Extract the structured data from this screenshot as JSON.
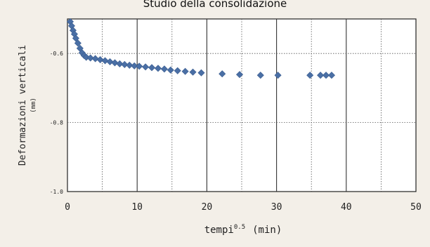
{
  "chart_data": {
    "type": "scatter",
    "title": "Studio della consolidazione",
    "xlabel": "tempi",
    "xlabel_superscript": "0.5",
    "xlabel_unit": "(min)",
    "ylabel": "Deformazioni verticali",
    "ylabel_unit": "(mm)",
    "xlim": [
      0,
      50
    ],
    "ylim": [
      -1.0,
      -0.5
    ],
    "x_ticks": [
      0,
      10,
      20,
      30,
      40,
      50
    ],
    "y_ticks": [
      -0.6,
      -0.8,
      -1.0
    ],
    "y_tick_labels": [
      "-0.6",
      "-0.8",
      "-1.0"
    ],
    "grid": true,
    "marker": "diamond",
    "colors": {
      "points": "#4a6fa5",
      "background": "#f3efe8",
      "plot_area": "#ffffff",
      "grid_major": "#333333",
      "grid_minor": "#555555"
    },
    "series": [
      {
        "values": [
          [
            0.4,
            -0.508
          ],
          [
            0.6,
            -0.52
          ],
          [
            0.8,
            -0.533
          ],
          [
            1.0,
            -0.544
          ],
          [
            1.2,
            -0.556
          ],
          [
            1.5,
            -0.57
          ],
          [
            1.8,
            -0.585
          ],
          [
            2.1,
            -0.598
          ],
          [
            2.4,
            -0.606
          ],
          [
            2.7,
            -0.611
          ],
          [
            3.3,
            -0.613
          ],
          [
            4.0,
            -0.615
          ],
          [
            4.7,
            -0.618
          ],
          [
            5.4,
            -0.621
          ],
          [
            6.1,
            -0.624
          ],
          [
            6.8,
            -0.627
          ],
          [
            7.5,
            -0.63
          ],
          [
            8.2,
            -0.632
          ],
          [
            8.9,
            -0.634
          ],
          [
            9.6,
            -0.636
          ],
          [
            10.3,
            -0.637
          ],
          [
            11.2,
            -0.639
          ],
          [
            12.1,
            -0.641
          ],
          [
            13.0,
            -0.643
          ],
          [
            13.9,
            -0.645
          ],
          [
            14.8,
            -0.648
          ],
          [
            15.8,
            -0.65
          ],
          [
            16.9,
            -0.652
          ],
          [
            18.0,
            -0.654
          ],
          [
            19.2,
            -0.656
          ],
          [
            22.2,
            -0.659
          ],
          [
            24.7,
            -0.661
          ],
          [
            27.7,
            -0.663
          ],
          [
            30.2,
            -0.663
          ],
          [
            34.8,
            -0.663
          ],
          [
            36.3,
            -0.663
          ],
          [
            37.1,
            -0.663
          ],
          [
            37.9,
            -0.663
          ]
        ]
      }
    ]
  }
}
